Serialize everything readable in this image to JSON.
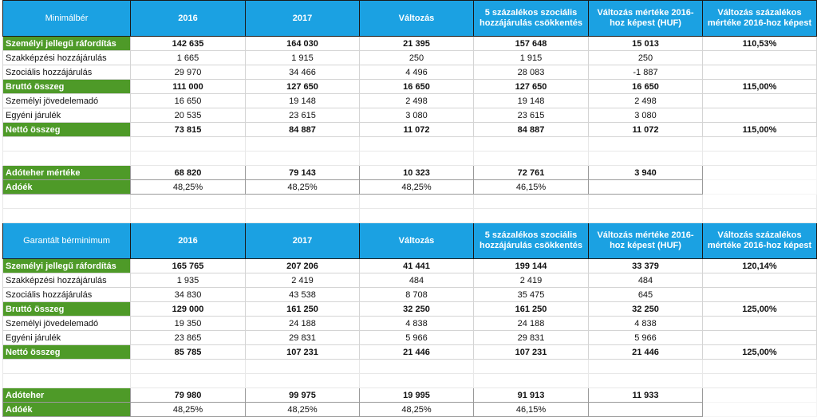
{
  "tables": [
    {
      "headers": [
        "Minimálbér",
        "2016",
        "2017",
        "Változás",
        "5 százalékos szociális hozzájárulás csökkentés",
        "Változás mértéke 2016-hoz képest (HUF)",
        "Változás százalékos mértéke 2016-hoz képest"
      ],
      "rows": [
        {
          "label": "Személyi jellegű ráfordítás",
          "cells": [
            "142 635",
            "164 030",
            "21 395",
            "157 648",
            "15 013",
            "110,53%"
          ],
          "strong": true
        },
        {
          "label": "Szakképzési hozzájárulás",
          "cells": [
            "1 665",
            "1 915",
            "250",
            "1 915",
            "250",
            ""
          ],
          "strong": false
        },
        {
          "label": "Szociális hozzájárulás",
          "cells": [
            "29 970",
            "34 466",
            "4 496",
            "28 083",
            "-1 887",
            ""
          ],
          "strong": false
        },
        {
          "label": "Bruttó összeg",
          "cells": [
            "111 000",
            "127 650",
            "16 650",
            "127 650",
            "16 650",
            "115,00%"
          ],
          "strong": true
        },
        {
          "label": "Személyi jövedelemadó",
          "cells": [
            "16 650",
            "19 148",
            "2 498",
            "19 148",
            "2 498",
            ""
          ],
          "strong": false
        },
        {
          "label": "Egyéni járulék",
          "cells": [
            "20 535",
            "23 615",
            "3 080",
            "23 615",
            "3 080",
            ""
          ],
          "strong": false
        },
        {
          "label": "Nettó összeg",
          "cells": [
            "73 815",
            "84 887",
            "11 072",
            "84 887",
            "11 072",
            "115,00%"
          ],
          "strong": true
        }
      ],
      "summary": [
        {
          "label": "Adóteher mértéke",
          "cells": [
            "68 820",
            "79 143",
            "10 323",
            "72 761",
            "3 940"
          ],
          "strong": true
        },
        {
          "label": "Adóék",
          "cells": [
            "48,25%",
            "48,25%",
            "48,25%",
            "46,15%",
            ""
          ],
          "strong": false
        }
      ]
    },
    {
      "headers": [
        "Garantált bérminimum",
        "2016",
        "2017",
        "Változás",
        "5 százalékos szociális hozzájárulás csökkentés",
        "Változás mértéke 2016-hoz képest (HUF)",
        "Változás százalékos mértéke 2016-hoz képest"
      ],
      "rows": [
        {
          "label": "Személyi jellegű ráfordítás",
          "cells": [
            "165 765",
            "207 206",
            "41 441",
            "199 144",
            "33 379",
            "120,14%"
          ],
          "strong": true
        },
        {
          "label": "Szakképzési hozzájárulás",
          "cells": [
            "1 935",
            "2 419",
            "484",
            "2 419",
            "484",
            ""
          ],
          "strong": false
        },
        {
          "label": "Szociális hozzájárulás",
          "cells": [
            "34 830",
            "43 538",
            "8 708",
            "35 475",
            "645",
            ""
          ],
          "strong": false
        },
        {
          "label": "Bruttó összeg",
          "cells": [
            "129 000",
            "161 250",
            "32 250",
            "161 250",
            "32 250",
            "125,00%"
          ],
          "strong": true
        },
        {
          "label": "Személyi jövedelemadó",
          "cells": [
            "19 350",
            "24 188",
            "4 838",
            "24 188",
            "4 838",
            ""
          ],
          "strong": false
        },
        {
          "label": "Egyéni járulék",
          "cells": [
            "23 865",
            "29 831",
            "5 966",
            "29 831",
            "5 966",
            ""
          ],
          "strong": false
        },
        {
          "label": "Nettó összeg",
          "cells": [
            "85 785",
            "107 231",
            "21 446",
            "107 231",
            "21 446",
            "125,00%"
          ],
          "strong": true
        }
      ],
      "summary": [
        {
          "label": "Adóteher",
          "cells": [
            "79 980",
            "99 975",
            "19 995",
            "91 913",
            "11 933"
          ],
          "strong": true
        },
        {
          "label": "Adóék",
          "cells": [
            "48,25%",
            "48,25%",
            "48,25%",
            "46,15%",
            ""
          ],
          "strong": false
        }
      ]
    }
  ]
}
